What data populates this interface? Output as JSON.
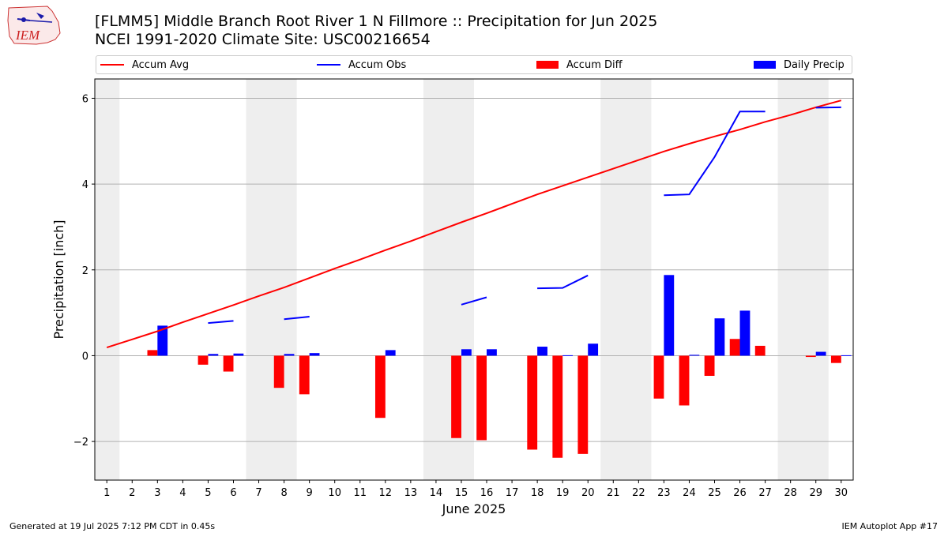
{
  "header": {
    "title": "[FLMM5] Middle Branch Root River 1 N Fillmore :: Precipitation for Jun 2025",
    "subtitle": "NCEI 1991-2020 Climate Site: USC00216654",
    "logo_text": "IEM"
  },
  "legend": [
    {
      "label": "Accum Avg",
      "kind": "line",
      "color": "#ff0000"
    },
    {
      "label": "Accum Obs",
      "kind": "line",
      "color": "#0000ff"
    },
    {
      "label": "Accum Diff",
      "kind": "bar",
      "color": "#ff0000"
    },
    {
      "label": "Daily Precip",
      "kind": "bar",
      "color": "#0000ff"
    }
  ],
  "footer": {
    "left": "Generated at 19 Jul 2025 7:12 PM CDT in 0.45s",
    "right": "IEM Autoplot App #17"
  },
  "chart_data": {
    "type": "bar",
    "xlabel": "June 2025",
    "ylabel": "Precipitation [inch]",
    "ylim": [
      -2.9,
      6.45
    ],
    "yticks": [
      -2,
      0,
      2,
      4,
      6
    ],
    "x": [
      1,
      2,
      3,
      4,
      5,
      6,
      7,
      8,
      9,
      10,
      11,
      12,
      13,
      14,
      15,
      16,
      17,
      18,
      19,
      20,
      21,
      22,
      23,
      24,
      25,
      26,
      27,
      28,
      29,
      30
    ],
    "grid": "horizontal",
    "legend_position": "top",
    "weekend_shading": [
      [
        1,
        1
      ],
      [
        7,
        8
      ],
      [
        14,
        15
      ],
      [
        21,
        22
      ],
      [
        28,
        29
      ]
    ],
    "series": [
      {
        "name": "Accum Avg",
        "type": "line",
        "color": "#ff0000",
        "values": [
          0.19,
          0.38,
          0.57,
          0.78,
          0.98,
          1.18,
          1.39,
          1.59,
          1.81,
          2.03,
          2.24,
          2.46,
          2.67,
          2.89,
          3.11,
          3.32,
          3.54,
          3.76,
          3.96,
          4.16,
          4.36,
          4.56,
          4.76,
          4.94,
          5.11,
          5.27,
          5.45,
          5.61,
          5.79,
          5.95
        ]
      },
      {
        "name": "Accum Obs",
        "type": "line",
        "color": "#0000ff",
        "values": [
          null,
          null,
          null,
          null,
          0.76,
          0.81,
          null,
          0.85,
          0.91,
          null,
          null,
          null,
          null,
          null,
          1.19,
          1.36,
          null,
          1.57,
          1.58,
          1.87,
          null,
          null,
          3.74,
          3.76,
          4.63,
          5.69,
          5.69,
          null,
          5.78,
          5.79
        ]
      },
      {
        "name": "Accum Diff",
        "type": "bar",
        "color": "#ff0000",
        "values": [
          0,
          0,
          0.13,
          0,
          -0.21,
          -0.37,
          0,
          -0.75,
          -0.9,
          0,
          0,
          -1.45,
          0,
          0,
          -1.92,
          -1.97,
          0,
          -2.19,
          -2.38,
          -2.29,
          0,
          0,
          -1.0,
          -1.16,
          -0.47,
          0.39,
          0.23,
          0,
          -0.03,
          -0.17
        ]
      },
      {
        "name": "Daily Precip",
        "type": "bar",
        "color": "#0000ff",
        "values": [
          0,
          0,
          0.7,
          0,
          0.04,
          0.05,
          0,
          0.04,
          0.06,
          0,
          0,
          0.13,
          0,
          0,
          0.15,
          0.15,
          0,
          0.21,
          0.01,
          0.28,
          0,
          0,
          1.88,
          0.02,
          0.87,
          1.05,
          0,
          0,
          0.09,
          0.01
        ]
      }
    ]
  }
}
